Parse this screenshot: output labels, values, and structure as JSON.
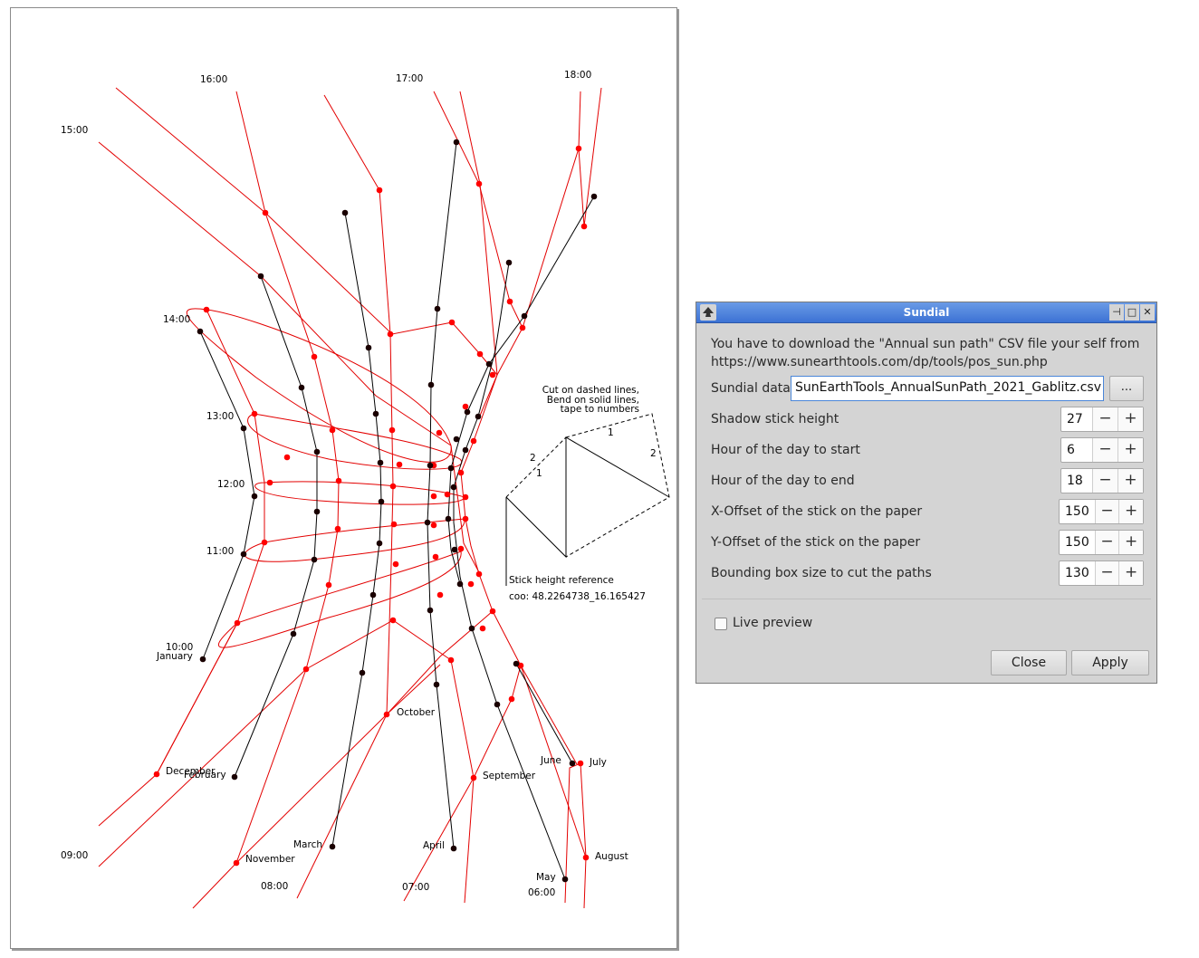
{
  "paper_labels": {
    "h0900": "09:00",
    "h0800": "08:00",
    "h0700": "07:00",
    "h0600": "06:00",
    "h1000": "10:00",
    "h1100": "11:00",
    "h1200": "12:00",
    "h1300": "13:00",
    "h1400": "14:00",
    "h1500": "15:00",
    "h1600": "16:00",
    "h1700": "17:00",
    "h1800": "18:00",
    "january": "January",
    "february": "February",
    "march": "March",
    "april": "April",
    "may": "May",
    "june": "June",
    "july": "July",
    "august": "August",
    "september": "September",
    "october": "October",
    "november": "November",
    "december": "December",
    "instruction_line1": "Cut on dashed lines,",
    "instruction_line2": "Bend on solid lines,",
    "instruction_line3": "tape to numbers",
    "tab_1a": "1",
    "tab_2a": "2",
    "tab_1b": "1",
    "tab_2b": "2",
    "stick_ref": "Stick height reference",
    "coords": "coo: 48.2264738_16.165427"
  },
  "colors": {
    "curve_red": "#e30000",
    "curve_black": "#000000",
    "dot_red": "#ff0000",
    "dot_dark": "#1a0000"
  },
  "dialog": {
    "title": "Sundial",
    "intro_line1": "You have to download the \"Annual sun path\" CSV file your self from",
    "intro_line2": "https://www.sunearthtools.com/dp/tools/pos_sun.php",
    "sundial_data_label": "Sundial data",
    "sundial_data_value": "SunEarthTools_AnnualSunPath_2021_Gablitz.csv",
    "browse_label": "...",
    "fields": [
      {
        "label": "Shadow stick height",
        "value": "27"
      },
      {
        "label": "Hour of the day to start",
        "value": "6"
      },
      {
        "label": "Hour of the day to end",
        "value": "18"
      },
      {
        "label": "X-Offset of the stick on the paper",
        "value": "150"
      },
      {
        "label": "Y-Offset of the stick on the paper",
        "value": "150"
      },
      {
        "label": "Bounding box size to cut the paths",
        "value": "130"
      }
    ],
    "minus": "−",
    "plus": "+",
    "live_preview": "Live preview",
    "close": "Close",
    "apply": "Apply",
    "win_pin": "⊣",
    "win_max": "□",
    "win_close": "✕"
  }
}
